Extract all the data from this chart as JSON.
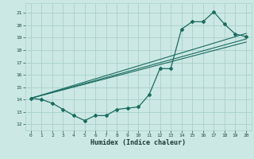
{
  "xlabel": "Humidex (Indice chaleur)",
  "bg_color": "#cce8e4",
  "grid_color": "#a8d0cc",
  "line_color": "#1a6b60",
  "xlim": [
    -0.5,
    20.5
  ],
  "ylim": [
    11.5,
    21.8
  ],
  "xticks": [
    0,
    1,
    2,
    3,
    4,
    5,
    6,
    7,
    8,
    9,
    10,
    11,
    12,
    13,
    14,
    15,
    16,
    17,
    18,
    19,
    20
  ],
  "yticks": [
    12,
    13,
    14,
    15,
    16,
    17,
    18,
    19,
    20,
    21
  ],
  "line1_x": [
    0,
    1,
    2,
    3,
    4,
    5,
    6,
    7,
    8,
    9,
    10,
    11,
    12,
    13,
    14,
    15,
    16,
    17,
    18,
    19,
    20
  ],
  "line1_y": [
    14.1,
    14.0,
    13.7,
    13.2,
    12.7,
    12.3,
    12.7,
    12.7,
    13.2,
    13.3,
    13.4,
    14.4,
    16.5,
    16.5,
    19.7,
    20.3,
    20.3,
    21.1,
    20.1,
    19.3,
    19.1
  ],
  "line2_x": [
    0,
    20
  ],
  "line2_y": [
    14.1,
    19.35
  ],
  "line3_x": [
    0,
    20
  ],
  "line3_y": [
    14.1,
    18.9
  ],
  "line4_x": [
    0,
    20
  ],
  "line4_y": [
    14.1,
    18.65
  ]
}
